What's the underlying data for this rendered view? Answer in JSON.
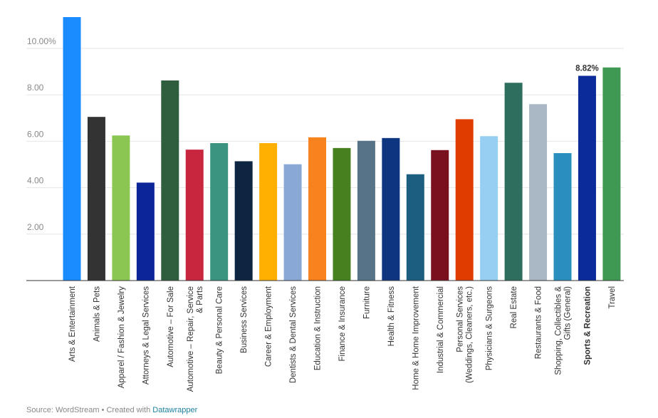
{
  "chart_data": {
    "type": "bar",
    "title": "",
    "xlabel": "",
    "ylabel": "",
    "ylim": [
      0,
      11.5
    ],
    "yticks": [
      {
        "value": 2,
        "label": "2.00"
      },
      {
        "value": 4,
        "label": "4.00"
      },
      {
        "value": 6,
        "label": "6.00"
      },
      {
        "value": 8,
        "label": "8.00"
      },
      {
        "value": 10,
        "label": "10.00%"
      }
    ],
    "grid": true,
    "highlight": {
      "category": "Sports & Recreation",
      "label": "8.82%"
    },
    "categories": [
      {
        "lines": [
          "Arts & Entertainment"
        ],
        "value": 11.35,
        "color": "#1a8cff"
      },
      {
        "lines": [
          "Animals & Pets"
        ],
        "value": 7.05,
        "color": "#333333"
      },
      {
        "lines": [
          "Apparel / Fashion & Jewelry"
        ],
        "value": 6.25,
        "color": "#8bc653"
      },
      {
        "lines": [
          "Attorneys & Legal Services"
        ],
        "value": 4.22,
        "color": "#0b2699"
      },
      {
        "lines": [
          "Automotive – For Sale"
        ],
        "value": 8.62,
        "color": "#2f5e3f"
      },
      {
        "lines": [
          "Automotive – Repair, Service",
          "& Parts"
        ],
        "value": 5.64,
        "color": "#c8263f"
      },
      {
        "lines": [
          "Beauty & Personal Care"
        ],
        "value": 5.92,
        "color": "#3a9480"
      },
      {
        "lines": [
          "Business Services"
        ],
        "value": 5.14,
        "color": "#0d2540"
      },
      {
        "lines": [
          "Career & Employment"
        ],
        "value": 5.92,
        "color": "#ffb000"
      },
      {
        "lines": [
          "Dentists & Dental Services"
        ],
        "value": 5.01,
        "color": "#8aa8d6"
      },
      {
        "lines": [
          "Education & Instruction"
        ],
        "value": 6.17,
        "color": "#f7821e"
      },
      {
        "lines": [
          "Finance & Insurance"
        ],
        "value": 5.71,
        "color": "#46801f"
      },
      {
        "lines": [
          "Furniture"
        ],
        "value": 6.02,
        "color": "#577387"
      },
      {
        "lines": [
          "Health & Fitness"
        ],
        "value": 6.14,
        "color": "#0d3580"
      },
      {
        "lines": [
          "Home & Home Improvement"
        ],
        "value": 4.58,
        "color": "#1c5e80"
      },
      {
        "lines": [
          "Industrial & Commercial"
        ],
        "value": 5.62,
        "color": "#7a0f1d"
      },
      {
        "lines": [
          "Personal Services",
          "(Weddings, Cleaners, etc.)"
        ],
        "value": 6.95,
        "color": "#e03c00"
      },
      {
        "lines": [
          "Physicians & Surgeons"
        ],
        "value": 6.22,
        "color": "#96cff2"
      },
      {
        "lines": [
          "Real Estate"
        ],
        "value": 8.52,
        "color": "#2e6e5e"
      },
      {
        "lines": [
          "Restaurants & Food"
        ],
        "value": 7.6,
        "color": "#a9b8c4"
      },
      {
        "lines": [
          "Shopping, Collectibles &",
          "Gifts (General)"
        ],
        "value": 5.49,
        "color": "#2b8fbd"
      },
      {
        "lines": [
          "Sports & Recreation"
        ],
        "value": 8.82,
        "color": "#0a2b99",
        "bold": true
      },
      {
        "lines": [
          "Travel"
        ],
        "value": 9.18,
        "color": "#409952"
      }
    ]
  },
  "footer": {
    "source": "Source: WordStream • Created with ",
    "link": "Datawrapper"
  }
}
